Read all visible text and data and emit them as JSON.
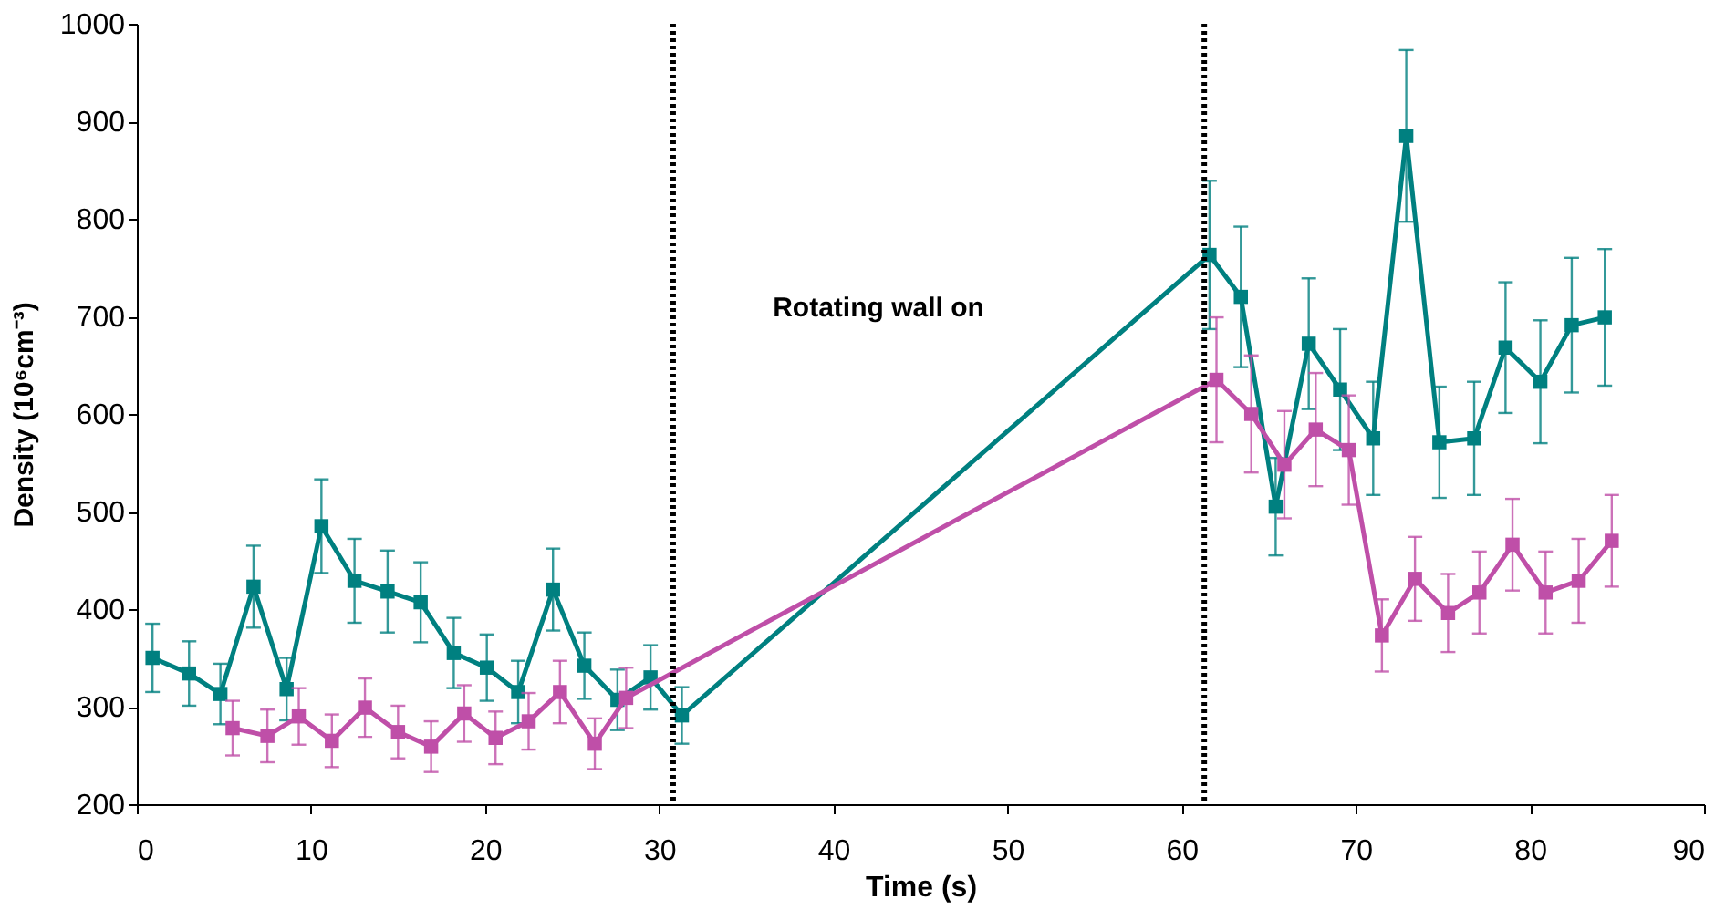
{
  "chart_data": {
    "type": "line",
    "xlabel": "Time (s)",
    "ylabel": "Density (10⁶cm⁻³)",
    "xlim": [
      0,
      90
    ],
    "xticks": [
      0,
      10,
      20,
      30,
      40,
      50,
      60,
      70,
      80,
      90
    ],
    "ylim": [
      200,
      1000
    ],
    "yticks": [
      200,
      300,
      400,
      500,
      600,
      700,
      800,
      900,
      1000
    ],
    "grid": false,
    "marker": "square",
    "line_style": "solid",
    "series": [
      {
        "color": "#008080",
        "x": [
          0.9,
          3.0,
          4.8,
          6.7,
          8.6,
          10.6,
          12.5,
          14.4,
          16.3,
          18.2,
          20.1,
          21.9,
          23.9,
          25.7,
          27.6,
          29.5,
          31.3,
          61.6,
          63.4,
          65.4,
          67.3,
          69.1,
          71.0,
          72.9,
          74.8,
          76.8,
          78.6,
          80.6,
          82.4,
          84.3
        ],
        "values": [
          350,
          334,
          313,
          423,
          318,
          485,
          429,
          418,
          407,
          355,
          340,
          315,
          420,
          342,
          307,
          330,
          291,
          763,
          720,
          505,
          672,
          625,
          575,
          885,
          571,
          575,
          668,
          633,
          691,
          699
        ],
        "errors": [
          35,
          33,
          31,
          42,
          32,
          48,
          43,
          42,
          41,
          36,
          34,
          32,
          42,
          34,
          31,
          33,
          29,
          76,
          72,
          50,
          67,
          62,
          58,
          88,
          57,
          58,
          67,
          63,
          69,
          70
        ]
      },
      {
        "color": "#bf4fa8",
        "x": [
          5.5,
          7.5,
          9.3,
          11.2,
          13.1,
          15.0,
          16.9,
          18.8,
          20.6,
          22.5,
          24.3,
          26.3,
          28.1,
          62.0,
          64.0,
          65.9,
          67.7,
          69.6,
          71.5,
          73.4,
          75.3,
          77.1,
          79.0,
          80.9,
          82.8,
          84.7
        ],
        "values": [
          278,
          270,
          290,
          265,
          299,
          274,
          259,
          293,
          268,
          285,
          315,
          262,
          309,
          635,
          600,
          548,
          584,
          563,
          373,
          431,
          396,
          417,
          466,
          417,
          429,
          470
        ],
        "errors": [
          28,
          27,
          29,
          27,
          30,
          27,
          26,
          29,
          27,
          29,
          32,
          26,
          31,
          64,
          60,
          55,
          58,
          56,
          37,
          43,
          40,
          42,
          47,
          42,
          43,
          47
        ]
      }
    ],
    "ref_lines": [
      {
        "axis": "x",
        "value": 30.8,
        "color": "#000000",
        "line_style": "dotted"
      },
      {
        "axis": "x",
        "value": 61.3,
        "color": "#000000",
        "line_style": "dotted"
      }
    ],
    "annotations": [
      "Rotating wall on"
    ]
  }
}
